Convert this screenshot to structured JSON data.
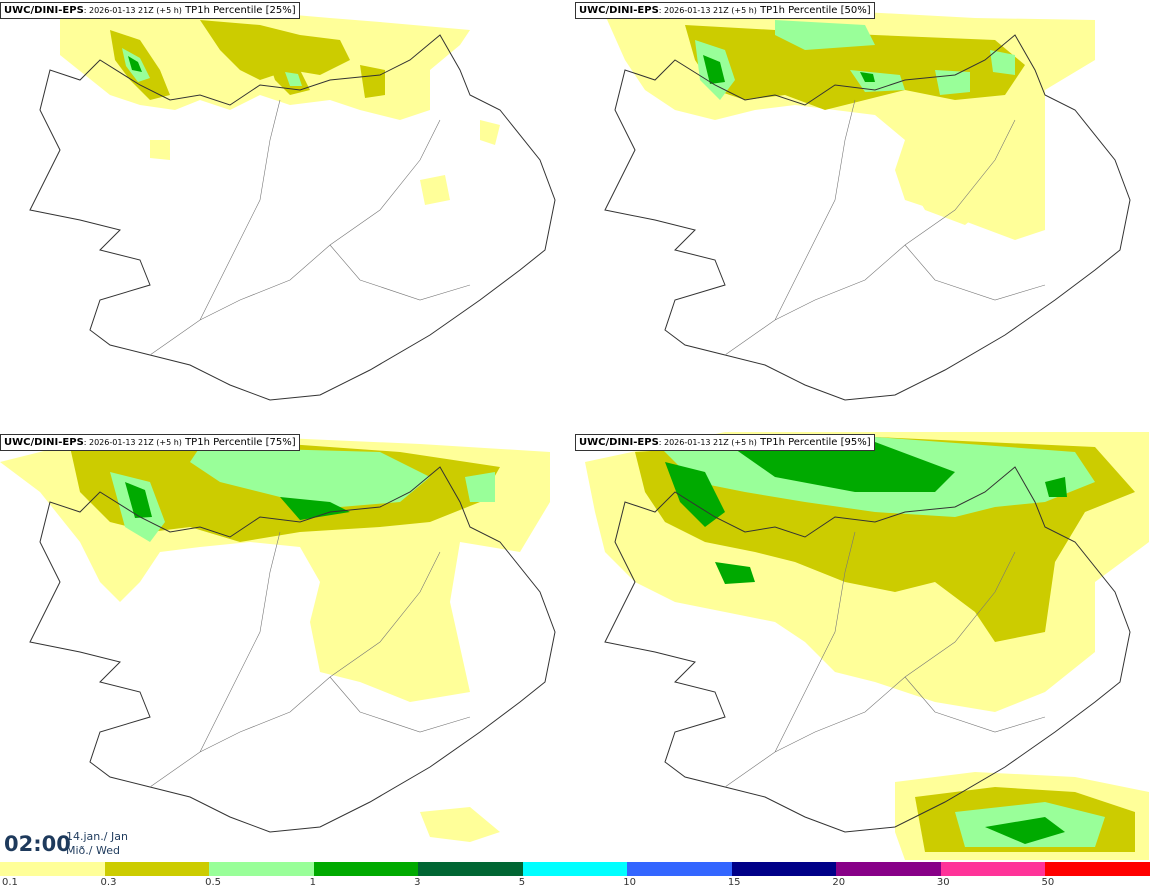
{
  "panels": [
    {
      "model": "UWC/DINI-EPS",
      "run": ": 2026-01-13 21Z (+5 h)",
      "field": "TP1h Percentile [25%]"
    },
    {
      "model": "UWC/DINI-EPS",
      "run": ": 2026-01-13 21Z (+5 h)",
      "field": "TP1h Percentile [50%]"
    },
    {
      "model": "UWC/DINI-EPS",
      "run": ": 2026-01-13 21Z (+5 h)",
      "field": "TP1h Percentile [75%]"
    },
    {
      "model": "UWC/DINI-EPS",
      "run": ": 2026-01-13 21Z (+5 h)",
      "field": "TP1h Percentile [95%]"
    }
  ],
  "valid_time": {
    "time": "02:00",
    "date_line1": "14.jan./ Jan",
    "date_line2": "Mið./ Wed"
  },
  "legend": {
    "labels": [
      "0.1",
      "0.3",
      "0.5",
      "1",
      "3",
      "5",
      "10",
      "15",
      "20",
      "30",
      "50"
    ],
    "colors": [
      "#ffff99",
      "#cccc00",
      "#99ff99",
      "#00aa00",
      "#006633",
      "#00ffff",
      "#3366ff",
      "#000088",
      "#880088",
      "#ff3399",
      "#ff0000"
    ]
  }
}
